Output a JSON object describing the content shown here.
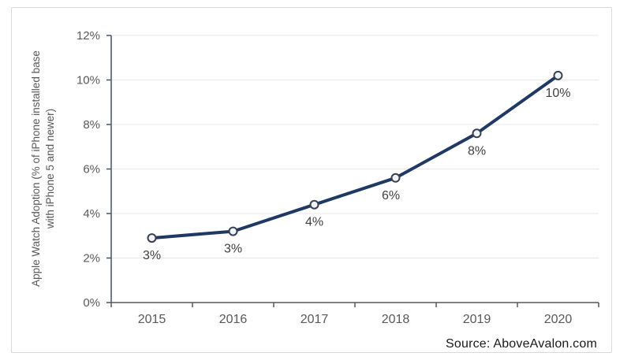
{
  "source": {
    "label": "Source: AboveAvalon.com"
  },
  "chart_data": {
    "type": "line",
    "title": "",
    "ylabel_line1": "Apple Watch Adoption (% of iPhone installed base",
    "ylabel_line2": "with iPhone 5 and newer)",
    "xlabel": "",
    "categories": [
      "2015",
      "2016",
      "2017",
      "2018",
      "2019",
      "2020"
    ],
    "series": [
      {
        "name": "Apple Watch Adoption",
        "values": [
          2.9,
          3.2,
          4.4,
          5.6,
          7.6,
          10.2
        ],
        "point_labels": [
          "3%",
          "3%",
          "4%",
          "6%",
          "8%",
          "10%"
        ]
      }
    ],
    "ylim": [
      0,
      12
    ],
    "y_tick_values": [
      0,
      2,
      4,
      6,
      8,
      10,
      12
    ],
    "y_tick_labels": [
      "0%",
      "2%",
      "4%",
      "6%",
      "8%",
      "10%",
      "12%"
    ],
    "grid": "horizontal",
    "legend": "none",
    "colors": {
      "line": "#1f3864",
      "marker_fill": "#f0f3f8",
      "marker_stroke": "#39404e",
      "grid": "#e7e7e7",
      "y_axis": "#44546a",
      "x_axis": "#595959",
      "tick_label": "#595959",
      "axis_title": "#595959",
      "data_label": "#404040"
    }
  }
}
